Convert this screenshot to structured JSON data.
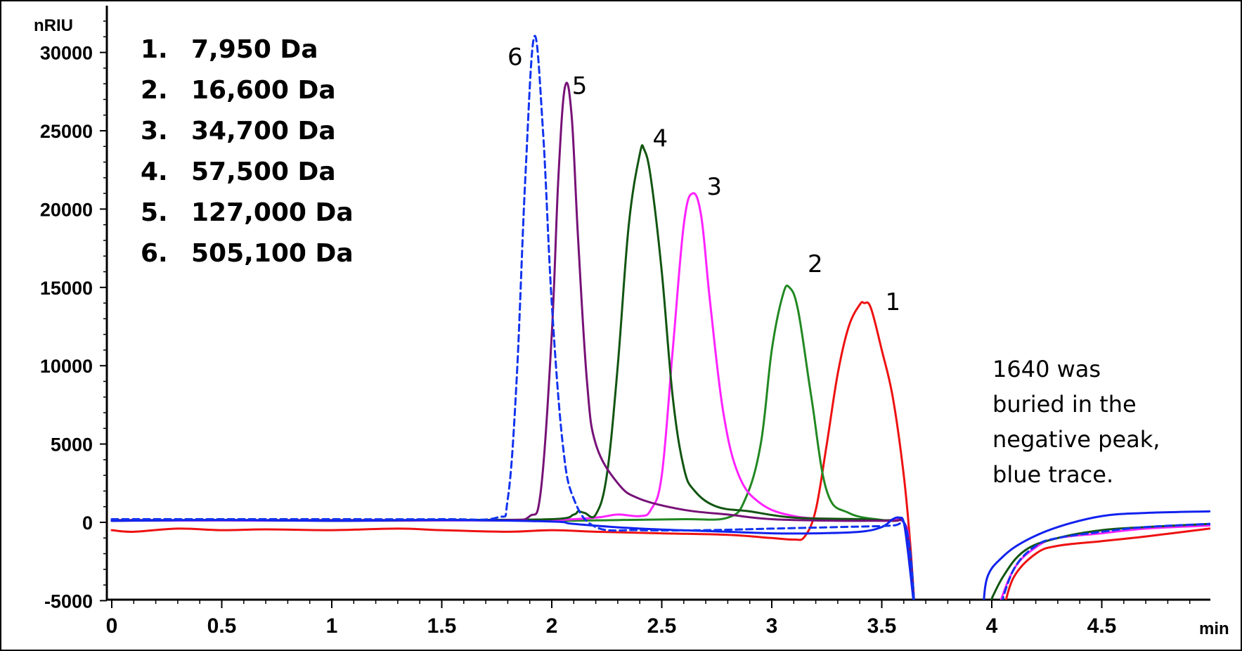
{
  "chart_data": {
    "type": "line",
    "title": "",
    "xlabel": "min",
    "ylabel": "nRIU",
    "xlim": [
      0,
      5.0
    ],
    "ylim": [
      -5000,
      32000
    ],
    "x_ticks": [
      "0",
      "0.5",
      "1",
      "1.5",
      "2",
      "2.5",
      "3",
      "3.5",
      "4",
      "4.5"
    ],
    "y_ticks": [
      "-5000",
      "0",
      "5000",
      "10000",
      "15000",
      "20000",
      "25000",
      "30000"
    ],
    "grid": false,
    "legend": {
      "placement": "top-left",
      "items": [
        {
          "num": "1.",
          "label": "7,950 Da"
        },
        {
          "num": "2.",
          "label": "16,600 Da"
        },
        {
          "num": "3.",
          "label": "34,700 Da"
        },
        {
          "num": "4.",
          "label": "57,500 Da"
        },
        {
          "num": "5.",
          "label": "127,000 Da"
        },
        {
          "num": "6.",
          "label": "505,100 Da"
        }
      ]
    },
    "annotation": {
      "lines": [
        "1640 was",
        "buried in the",
        "negative peak,",
        "blue trace."
      ]
    },
    "series": [
      {
        "id": "1",
        "color": "#ee1111",
        "dash": false,
        "baseline": -500,
        "peak_x": 3.42,
        "peak_y": 14000,
        "x": [
          0,
          0.1,
          0.3,
          0.5,
          0.7,
          1.0,
          1.3,
          1.5,
          1.8,
          2.0,
          2.2,
          2.5,
          2.8,
          3.0,
          3.1,
          3.15,
          3.2,
          3.25,
          3.3,
          3.35,
          3.4,
          3.42,
          3.45,
          3.5,
          3.55,
          3.6,
          3.63,
          3.65,
          4.05,
          4.1,
          4.2,
          4.3,
          4.5,
          4.7,
          4.99
        ],
        "y": [
          -500,
          -600,
          -400,
          -500,
          -450,
          -500,
          -400,
          -500,
          -600,
          -500,
          -600,
          -700,
          -800,
          -1000,
          -1100,
          -900,
          800,
          5000,
          9500,
          12500,
          13900,
          14000,
          13700,
          11000,
          8000,
          3000,
          -1500,
          -5000,
          -5000,
          -3500,
          -2000,
          -1500,
          -1200,
          -900,
          -400
        ]
      },
      {
        "id": "2",
        "color": "#228822",
        "dash": false,
        "baseline": 0,
        "peak_x": 3.08,
        "peak_y": 15000,
        "x": [
          0,
          0.5,
          1.0,
          1.5,
          2.0,
          2.3,
          2.6,
          2.8,
          2.88,
          2.95,
          3.0,
          3.05,
          3.08,
          3.12,
          3.18,
          3.25,
          3.35,
          3.5,
          3.6,
          3.63,
          3.65
        ],
        "y": [
          100,
          150,
          100,
          150,
          100,
          150,
          200,
          300,
          1500,
          5000,
          11000,
          14500,
          15000,
          13500,
          8000,
          2000,
          600,
          150,
          0,
          -2000,
          -5000
        ]
      },
      {
        "id": "3",
        "color": "#ff22ff",
        "dash": false,
        "baseline": 0,
        "peak_x": 2.64,
        "peak_y": 21000,
        "x": [
          0,
          0.5,
          1.0,
          1.5,
          2.0,
          2.2,
          2.3,
          2.4,
          2.45,
          2.5,
          2.55,
          2.6,
          2.64,
          2.68,
          2.72,
          2.78,
          2.85,
          2.95,
          3.1,
          3.3,
          3.5,
          3.6,
          3.63,
          3.65,
          4.02,
          4.1,
          4.2,
          4.3,
          4.5,
          4.7,
          4.99
        ],
        "y": [
          100,
          120,
          100,
          120,
          150,
          300,
          500,
          400,
          800,
          3000,
          11000,
          19000,
          21000,
          19500,
          14000,
          7000,
          3000,
          1200,
          400,
          200,
          100,
          0,
          -2000,
          -5000,
          -5000,
          -3000,
          -1600,
          -1000,
          -700,
          -400,
          -200
        ]
      },
      {
        "id": "4",
        "color": "#115511",
        "dash": false,
        "baseline": 0,
        "peak_x": 2.42,
        "peak_y": 23800,
        "x": [
          0,
          0.5,
          1.0,
          1.5,
          2.0,
          2.1,
          2.12,
          2.15,
          2.2,
          2.25,
          2.3,
          2.35,
          2.4,
          2.42,
          2.45,
          2.5,
          2.55,
          2.6,
          2.65,
          2.75,
          2.9,
          3.1,
          3.4,
          3.55,
          3.6,
          3.63,
          3.65,
          3.97,
          4.05,
          4.15,
          4.3,
          4.5,
          4.7,
          4.99
        ],
        "y": [
          100,
          150,
          100,
          150,
          200,
          500,
          700,
          600,
          500,
          3000,
          10000,
          19000,
          23500,
          23800,
          22000,
          16000,
          8000,
          3500,
          2000,
          1000,
          700,
          300,
          200,
          100,
          0,
          -2000,
          -5000,
          -5000,
          -3500,
          -1800,
          -1000,
          -500,
          -300,
          -100
        ]
      },
      {
        "id": "5",
        "color": "#771177",
        "dash": false,
        "baseline": 0,
        "peak_x": 2.06,
        "peak_y": 27800,
        "x": [
          0,
          0.5,
          1.0,
          1.5,
          1.8,
          1.9,
          1.95,
          2.0,
          2.03,
          2.06,
          2.09,
          2.12,
          2.16,
          2.2,
          2.3,
          2.4,
          2.6,
          2.8,
          3.0,
          3.3,
          3.55,
          3.6,
          3.63,
          3.65
        ],
        "y": [
          150,
          150,
          150,
          150,
          150,
          400,
          2000,
          12000,
          22000,
          27800,
          26000,
          18000,
          9000,
          5000,
          2500,
          1500,
          800,
          500,
          200,
          100,
          100,
          0,
          -2000,
          -5000
        ]
      },
      {
        "id": "6",
        "color": "#1133ee",
        "dash": true,
        "baseline": 0,
        "peak_x": 1.92,
        "peak_y": 31000,
        "x": [
          0,
          0.5,
          1.0,
          1.5,
          1.75,
          1.8,
          1.84,
          1.88,
          1.92,
          1.96,
          2.0,
          2.05,
          2.1,
          2.2,
          2.4,
          2.7,
          3.0,
          3.3,
          3.55,
          3.6,
          3.63,
          3.65,
          4.03,
          4.1,
          4.2,
          4.3,
          4.5,
          4.7,
          4.99
        ],
        "y": [
          200,
          200,
          200,
          200,
          300,
          1500,
          9000,
          22000,
          31000,
          25000,
          14000,
          5000,
          1500,
          -300,
          -500,
          -500,
          -400,
          -300,
          -200,
          0,
          -2000,
          -5000,
          -5000,
          -3000,
          -1500,
          -1000,
          -600,
          -300,
          -100
        ]
      },
      {
        "id": "blue-solid",
        "color": "#1122ee",
        "dash": false,
        "baseline": 0,
        "x": [
          0,
          0.5,
          1.0,
          1.5,
          2.0,
          2.1,
          2.4,
          2.8,
          3.0,
          3.2,
          3.4,
          3.5,
          3.55,
          3.58,
          3.6,
          3.62,
          3.65,
          3.96,
          3.98,
          4.05,
          4.15,
          4.3,
          4.5,
          4.7,
          4.99
        ],
        "y": [
          100,
          150,
          100,
          150,
          50,
          -100,
          -400,
          -600,
          -700,
          -700,
          -600,
          -300,
          200,
          300,
          0,
          -2000,
          -5000,
          -5000,
          -3500,
          -2200,
          -1200,
          -300,
          400,
          600,
          700
        ]
      }
    ]
  }
}
